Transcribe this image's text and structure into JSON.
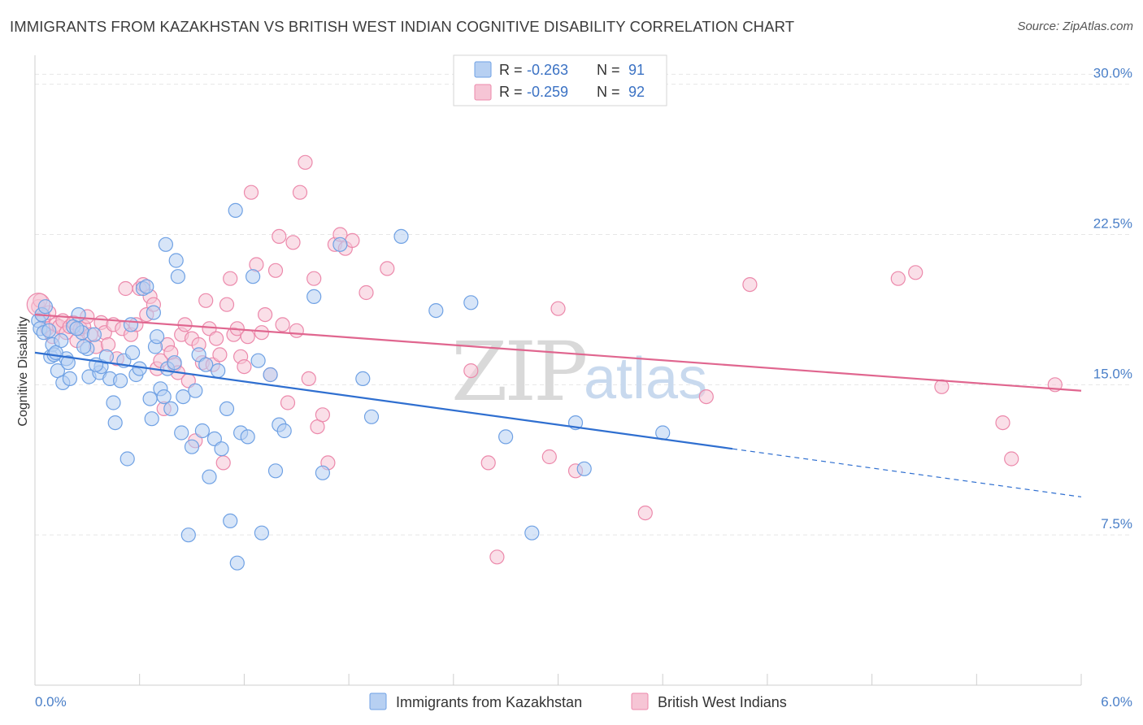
{
  "title": "IMMIGRANTS FROM KAZAKHSTAN VS BRITISH WEST INDIAN COGNITIVE DISABILITY CORRELATION CHART",
  "source": "Source: ZipAtlas.com",
  "watermark": {
    "zip": "ZIP",
    "atlas": "atlas"
  },
  "legend": [
    {
      "r_label": "R = ",
      "r_value": "-0.263",
      "n_label": "N = ",
      "n_value": "91"
    },
    {
      "r_label": "R = ",
      "r_value": "-0.259",
      "n_label": "N = ",
      "n_value": "92"
    }
  ],
  "chart_data": {
    "type": "scatter",
    "title": "IMMIGRANTS FROM KAZAKHSTAN VS BRITISH WEST INDIAN COGNITIVE DISABILITY CORRELATION CHART",
    "xlabel": "",
    "ylabel": "Cognitive Disability",
    "xlim": [
      0,
      6
    ],
    "ylim": [
      0,
      31
    ],
    "x_tick_labels": [
      "0.0%",
      "6.0%"
    ],
    "y_ticks": [
      7.5,
      15.0,
      22.5,
      30.0
    ],
    "y_tick_labels": [
      "7.5%",
      "15.0%",
      "22.5%",
      "30.0%"
    ],
    "grid": true,
    "legend_position": "top-center",
    "series": [
      {
        "name": "Immigrants from Kazakhstan",
        "color": "#6fa1e4",
        "fill": "#b7d0f2",
        "r": -0.263,
        "n": 91,
        "trend": {
          "x0": 0.0,
          "y0": 16.6,
          "x1": 4.0,
          "y1": 11.8,
          "dash_to_x": 6.0,
          "dash_to_y": 9.4
        },
        "points": [
          [
            0.02,
            18.2
          ],
          [
            0.03,
            17.8
          ],
          [
            0.04,
            18.5
          ],
          [
            0.05,
            17.6
          ],
          [
            0.06,
            18.9
          ],
          [
            0.08,
            17.7
          ],
          [
            0.09,
            16.4
          ],
          [
            0.1,
            17.0
          ],
          [
            0.11,
            16.5
          ],
          [
            0.13,
            15.7
          ],
          [
            0.15,
            17.2
          ],
          [
            0.16,
            15.1
          ],
          [
            0.18,
            16.3
          ],
          [
            0.19,
            16.1
          ],
          [
            0.22,
            17.9
          ],
          [
            0.25,
            18.5
          ],
          [
            0.27,
            17.6
          ],
          [
            0.3,
            16.8
          ],
          [
            0.31,
            15.4
          ],
          [
            0.34,
            17.5
          ],
          [
            0.37,
            15.6
          ],
          [
            0.38,
            15.9
          ],
          [
            0.41,
            16.4
          ],
          [
            0.43,
            15.3
          ],
          [
            0.45,
            14.1
          ],
          [
            0.46,
            13.1
          ],
          [
            0.49,
            15.2
          ],
          [
            0.51,
            16.2
          ],
          [
            0.53,
            11.3
          ],
          [
            0.56,
            16.6
          ],
          [
            0.58,
            15.5
          ],
          [
            0.6,
            15.8
          ],
          [
            0.62,
            19.8
          ],
          [
            0.64,
            19.9
          ],
          [
            0.66,
            14.3
          ],
          [
            0.67,
            13.3
          ],
          [
            0.68,
            18.6
          ],
          [
            0.69,
            16.9
          ],
          [
            0.7,
            17.4
          ],
          [
            0.72,
            14.8
          ],
          [
            0.74,
            14.4
          ],
          [
            0.75,
            22.0
          ],
          [
            0.76,
            15.8
          ],
          [
            0.78,
            13.8
          ],
          [
            0.8,
            16.1
          ],
          [
            0.81,
            21.2
          ],
          [
            0.82,
            20.4
          ],
          [
            0.84,
            12.6
          ],
          [
            0.85,
            14.4
          ],
          [
            0.88,
            7.5
          ],
          [
            0.9,
            11.9
          ],
          [
            0.92,
            14.7
          ],
          [
            0.94,
            16.5
          ],
          [
            0.96,
            12.7
          ],
          [
            0.98,
            16.0
          ],
          [
            1.0,
            10.4
          ],
          [
            1.03,
            12.3
          ],
          [
            1.05,
            15.7
          ],
          [
            1.07,
            11.8
          ],
          [
            1.1,
            13.8
          ],
          [
            1.12,
            8.2
          ],
          [
            1.15,
            23.7
          ],
          [
            1.16,
            6.1
          ],
          [
            1.18,
            12.6
          ],
          [
            1.22,
            12.4
          ],
          [
            1.25,
            20.4
          ],
          [
            1.28,
            16.2
          ],
          [
            1.3,
            7.6
          ],
          [
            1.35,
            15.5
          ],
          [
            1.38,
            10.7
          ],
          [
            1.4,
            13.0
          ],
          [
            1.43,
            12.7
          ],
          [
            1.6,
            19.4
          ],
          [
            1.65,
            10.6
          ],
          [
            1.75,
            22.0
          ],
          [
            1.88,
            15.3
          ],
          [
            1.93,
            13.4
          ],
          [
            2.1,
            22.4
          ],
          [
            2.3,
            18.7
          ],
          [
            2.5,
            19.1
          ],
          [
            2.7,
            12.4
          ],
          [
            2.85,
            7.6
          ],
          [
            3.1,
            13.1
          ],
          [
            3.15,
            10.8
          ],
          [
            3.6,
            12.6
          ],
          [
            0.24,
            17.8
          ],
          [
            0.35,
            16.0
          ],
          [
            0.55,
            18.0
          ],
          [
            0.12,
            16.6
          ],
          [
            0.2,
            15.3
          ],
          [
            0.28,
            16.9
          ]
        ]
      },
      {
        "name": "British West Indians",
        "color": "#ec89ab",
        "fill": "#f6c5d5",
        "r": -0.259,
        "n": 92,
        "trend": {
          "x0": 0.0,
          "y0": 18.5,
          "x1": 6.0,
          "y1": 14.7
        },
        "points": [
          [
            0.02,
            18.9
          ],
          [
            0.03,
            19.2
          ],
          [
            0.05,
            18.4
          ],
          [
            0.07,
            17.8
          ],
          [
            0.08,
            18.6
          ],
          [
            0.1,
            17.4
          ],
          [
            0.12,
            18.0
          ],
          [
            0.14,
            17.9
          ],
          [
            0.16,
            18.2
          ],
          [
            0.18,
            17.6
          ],
          [
            0.2,
            17.9
          ],
          [
            0.22,
            18.1
          ],
          [
            0.24,
            17.2
          ],
          [
            0.26,
            17.8
          ],
          [
            0.28,
            17.9
          ],
          [
            0.3,
            18.4
          ],
          [
            0.32,
            17.5
          ],
          [
            0.35,
            16.9
          ],
          [
            0.38,
            18.1
          ],
          [
            0.4,
            17.6
          ],
          [
            0.42,
            17.0
          ],
          [
            0.45,
            18.0
          ],
          [
            0.47,
            16.3
          ],
          [
            0.5,
            17.8
          ],
          [
            0.52,
            19.8
          ],
          [
            0.55,
            17.5
          ],
          [
            0.58,
            18.0
          ],
          [
            0.6,
            19.8
          ],
          [
            0.62,
            20.0
          ],
          [
            0.64,
            18.5
          ],
          [
            0.66,
            19.4
          ],
          [
            0.68,
            19.0
          ],
          [
            0.7,
            15.8
          ],
          [
            0.72,
            16.2
          ],
          [
            0.74,
            13.8
          ],
          [
            0.76,
            17.0
          ],
          [
            0.78,
            16.6
          ],
          [
            0.8,
            16.0
          ],
          [
            0.82,
            15.6
          ],
          [
            0.84,
            17.5
          ],
          [
            0.86,
            18.0
          ],
          [
            0.88,
            15.2
          ],
          [
            0.9,
            17.3
          ],
          [
            0.92,
            12.2
          ],
          [
            0.94,
            17.0
          ],
          [
            0.96,
            16.1
          ],
          [
            0.98,
            19.2
          ],
          [
            1.0,
            17.8
          ],
          [
            1.02,
            16.0
          ],
          [
            1.04,
            17.3
          ],
          [
            1.06,
            16.5
          ],
          [
            1.08,
            11.1
          ],
          [
            1.1,
            19.0
          ],
          [
            1.12,
            20.3
          ],
          [
            1.14,
            17.5
          ],
          [
            1.16,
            17.8
          ],
          [
            1.18,
            16.4
          ],
          [
            1.2,
            15.9
          ],
          [
            1.22,
            17.4
          ],
          [
            1.24,
            24.6
          ],
          [
            1.27,
            21.0
          ],
          [
            1.3,
            17.6
          ],
          [
            1.32,
            18.5
          ],
          [
            1.35,
            15.5
          ],
          [
            1.38,
            20.7
          ],
          [
            1.4,
            22.4
          ],
          [
            1.42,
            18.0
          ],
          [
            1.45,
            14.1
          ],
          [
            1.48,
            22.1
          ],
          [
            1.5,
            17.7
          ],
          [
            1.52,
            24.6
          ],
          [
            1.55,
            26.1
          ],
          [
            1.57,
            15.3
          ],
          [
            1.6,
            20.3
          ],
          [
            1.62,
            12.9
          ],
          [
            1.65,
            13.5
          ],
          [
            1.68,
            11.1
          ],
          [
            1.72,
            22.0
          ],
          [
            1.75,
            22.5
          ],
          [
            1.78,
            21.8
          ],
          [
            1.82,
            22.2
          ],
          [
            1.9,
            19.6
          ],
          [
            2.02,
            20.8
          ],
          [
            2.5,
            15.7
          ],
          [
            2.6,
            11.1
          ],
          [
            2.65,
            6.4
          ],
          [
            2.95,
            11.4
          ],
          [
            3.0,
            18.8
          ],
          [
            3.1,
            10.7
          ],
          [
            3.5,
            8.6
          ],
          [
            3.85,
            14.4
          ],
          [
            4.1,
            20.0
          ]
        ],
        "extra_points": [
          [
            4.95,
            20.3
          ],
          [
            5.05,
            20.6
          ],
          [
            5.2,
            14.9
          ],
          [
            5.55,
            13.1
          ],
          [
            5.6,
            11.3
          ],
          [
            5.85,
            15.0
          ]
        ]
      }
    ]
  },
  "bottom_legend": [
    "Immigrants from Kazakhstan",
    "British West Indians"
  ]
}
